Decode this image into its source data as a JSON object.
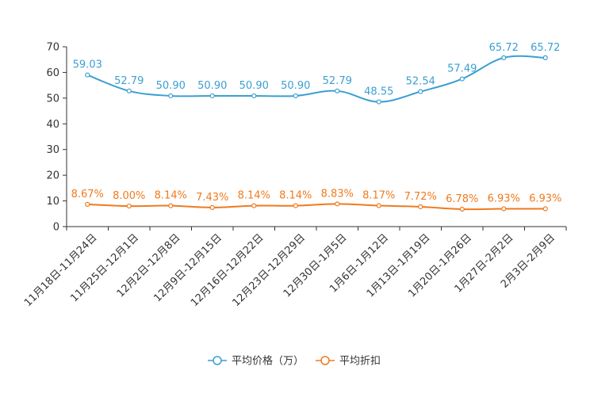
{
  "chart_data": {
    "type": "line",
    "title": "",
    "xlabel": "",
    "ylabel": "",
    "ylim": [
      0,
      70
    ],
    "yticks": [
      0,
      10,
      20,
      30,
      40,
      50,
      60,
      70
    ],
    "grid": false,
    "legend_position": "bottom-center",
    "categories": [
      "11月18日-11月24日",
      "11月25日-12月1日",
      "12月2日-12月8日",
      "12月9日-12月15日",
      "12月16日-12月22日",
      "12月23日-12月29日",
      "12月30日-1月5日",
      "1月6日-1月12日",
      "1月13日-1月19日",
      "1月20日-1月26日",
      "1月27日-2月2日",
      "2月3日-2月9日"
    ],
    "series": [
      {
        "name": "平均价格（万）",
        "color": "#3b9fd1",
        "values": [
          59.03,
          52.79,
          50.9,
          50.9,
          50.9,
          50.9,
          52.79,
          48.55,
          52.54,
          57.49,
          65.72,
          65.72
        ],
        "labels": [
          "59.03",
          "52.79",
          "50.90",
          "50.90",
          "50.90",
          "50.90",
          "52.79",
          "48.55",
          "52.54",
          "57.49",
          "65.72",
          "65.72"
        ]
      },
      {
        "name": "平均折扣",
        "color": "#f07a1d",
        "values": [
          8.67,
          8.0,
          8.14,
          7.43,
          8.14,
          8.14,
          8.83,
          8.17,
          7.72,
          6.78,
          6.93,
          6.93
        ],
        "labels": [
          "8.67%",
          "8.00%",
          "8.14%",
          "7.43%",
          "8.14%",
          "8.14%",
          "8.83%",
          "8.17%",
          "7.72%",
          "6.78%",
          "6.93%",
          "6.93%"
        ]
      }
    ]
  }
}
